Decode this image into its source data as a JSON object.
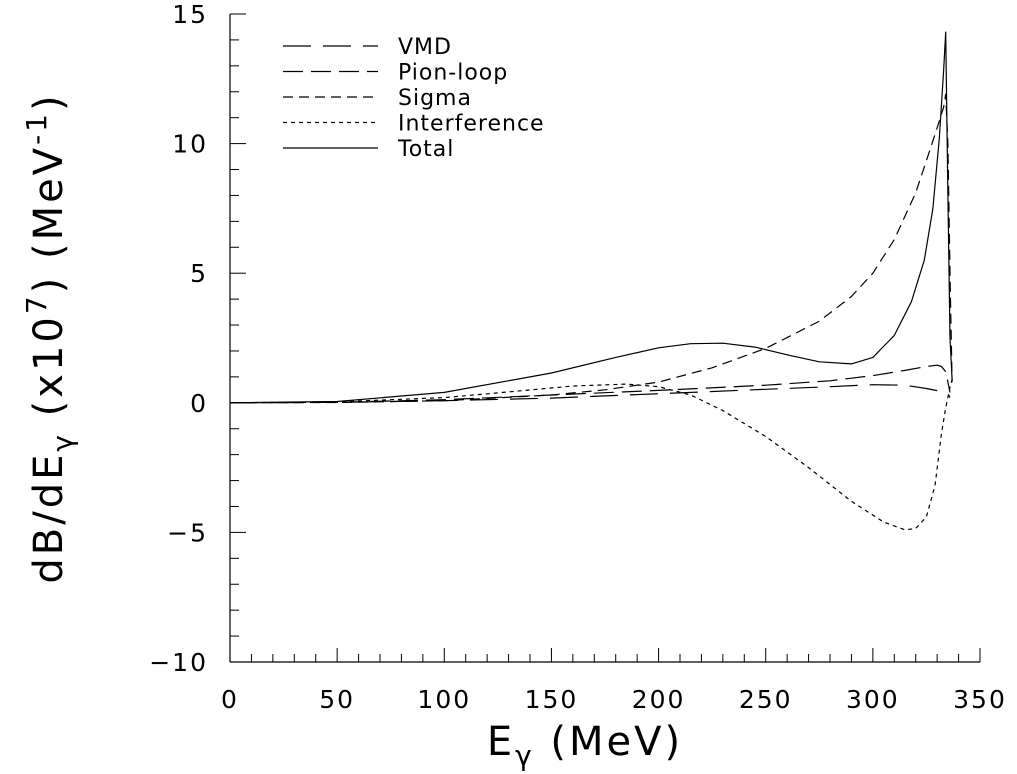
{
  "chart_data": {
    "type": "line",
    "title": "",
    "xlabel": "E",
    "xlabel_sub": "γ",
    "xlabel_unit": " (MeV)",
    "ylabel_main": "dB/dE",
    "ylabel_sub": "γ",
    "ylabel_scale": " (x10",
    "ylabel_scale_exp": "7",
    "ylabel_unit_open": ")  (MeV",
    "ylabel_unit_exp": "-1",
    "ylabel_unit_close": ")",
    "xlim": [
      0,
      350
    ],
    "ylim": [
      -10,
      15
    ],
    "xticks": [
      0,
      50,
      100,
      150,
      200,
      250,
      300,
      350
    ],
    "xtick_labels": [
      "0",
      "50",
      "100",
      "150",
      "200",
      "250",
      "300",
      "350"
    ],
    "yticks": [
      -10,
      -5,
      0,
      5,
      10,
      15
    ],
    "ytick_labels": [
      "−10",
      "−5",
      "0",
      "5",
      "10",
      "15"
    ],
    "grid": false,
    "legend_position": "top-left",
    "series": [
      {
        "name": "VMD",
        "dash": "28,12",
        "x": [
          0,
          50,
          100,
          150,
          200,
          250,
          280,
          300,
          315,
          325,
          330,
          333,
          335,
          336
        ],
        "y": [
          0,
          0.02,
          0.08,
          0.18,
          0.35,
          0.52,
          0.62,
          0.7,
          0.68,
          0.55,
          0.47,
          0.42,
          0.35,
          0.2
        ]
      },
      {
        "name": "Pion-loop",
        "dash": "20,8",
        "x": [
          0,
          50,
          100,
          150,
          200,
          250,
          280,
          300,
          315,
          325,
          330,
          332,
          334,
          335,
          336
        ],
        "y": [
          0,
          0.02,
          0.12,
          0.3,
          0.48,
          0.68,
          0.85,
          1.05,
          1.25,
          1.4,
          1.45,
          1.4,
          1.2,
          0.8,
          0.4
        ]
      },
      {
        "name": "Sigma",
        "dash": "10,6",
        "x": [
          0,
          50,
          100,
          150,
          175,
          200,
          225,
          250,
          275,
          290,
          300,
          310,
          320,
          326,
          330,
          333,
          334,
          335,
          336,
          337
        ],
        "y": [
          0,
          0.01,
          0.08,
          0.3,
          0.5,
          0.8,
          1.35,
          2.1,
          3.15,
          4.1,
          5.0,
          6.3,
          8.1,
          9.6,
          10.6,
          11.4,
          11.9,
          10.0,
          5.0,
          0.8
        ]
      },
      {
        "name": "Interference",
        "dash": "4,4",
        "x": [
          0,
          50,
          100,
          130,
          160,
          185,
          200,
          215,
          230,
          250,
          270,
          290,
          305,
          315,
          320,
          325,
          329,
          332,
          334,
          336,
          337
        ],
        "y": [
          0,
          0.04,
          0.2,
          0.42,
          0.65,
          0.72,
          0.62,
          0.3,
          -0.3,
          -1.3,
          -2.5,
          -3.8,
          -4.6,
          -4.9,
          -4.85,
          -4.4,
          -3.2,
          -1.2,
          -0.2,
          0.6,
          0.9
        ]
      },
      {
        "name": "Total",
        "dash": "",
        "x": [
          0,
          50,
          100,
          150,
          180,
          200,
          215,
          230,
          245,
          260,
          275,
          290,
          300,
          310,
          318,
          324,
          328,
          331,
          333,
          334,
          335,
          336,
          337
        ],
        "y": [
          0,
          0.05,
          0.4,
          1.15,
          1.75,
          2.12,
          2.28,
          2.3,
          2.15,
          1.85,
          1.58,
          1.5,
          1.75,
          2.6,
          3.9,
          5.5,
          7.5,
          10.2,
          12.8,
          14.3,
          8.0,
          2.5,
          0.9
        ]
      }
    ]
  }
}
